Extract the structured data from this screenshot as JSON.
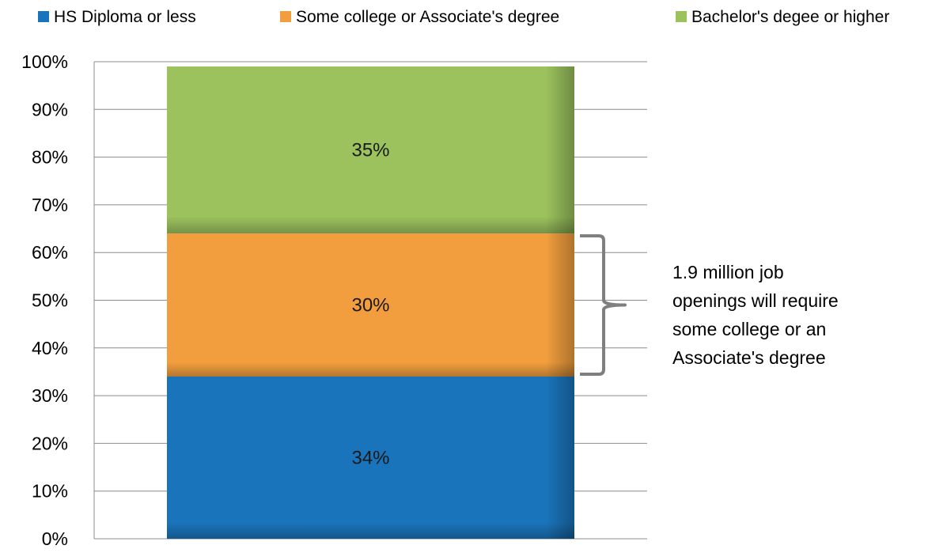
{
  "chart_data": {
    "type": "bar",
    "stacked": true,
    "categories": [
      ""
    ],
    "series": [
      {
        "name": "HS Diploma or less",
        "values": [
          34
        ],
        "label": "34%",
        "color": "#1a74bb"
      },
      {
        "name": "Some college or Associate's degree",
        "values": [
          30
        ],
        "label": "30%",
        "color": "#f29e3e"
      },
      {
        "name": "Bachelor's degee or higher",
        "values": [
          35
        ],
        "label": "35%",
        "color": "#9bc25d"
      }
    ],
    "ylim": [
      0,
      100
    ],
    "yticks": [
      "0%",
      "10%",
      "20%",
      "30%",
      "40%",
      "50%",
      "60%",
      "70%",
      "80%",
      "90%",
      "100%"
    ],
    "grid": true,
    "legend_position": "top",
    "title": "",
    "xlabel": "",
    "ylabel": "",
    "annotation": {
      "lines": [
        "1.9 million job",
        "openings will require",
        "some college or an",
        "Associate's degree"
      ],
      "brackets_series": 1,
      "bracket_color": "#7f7f7f"
    }
  }
}
